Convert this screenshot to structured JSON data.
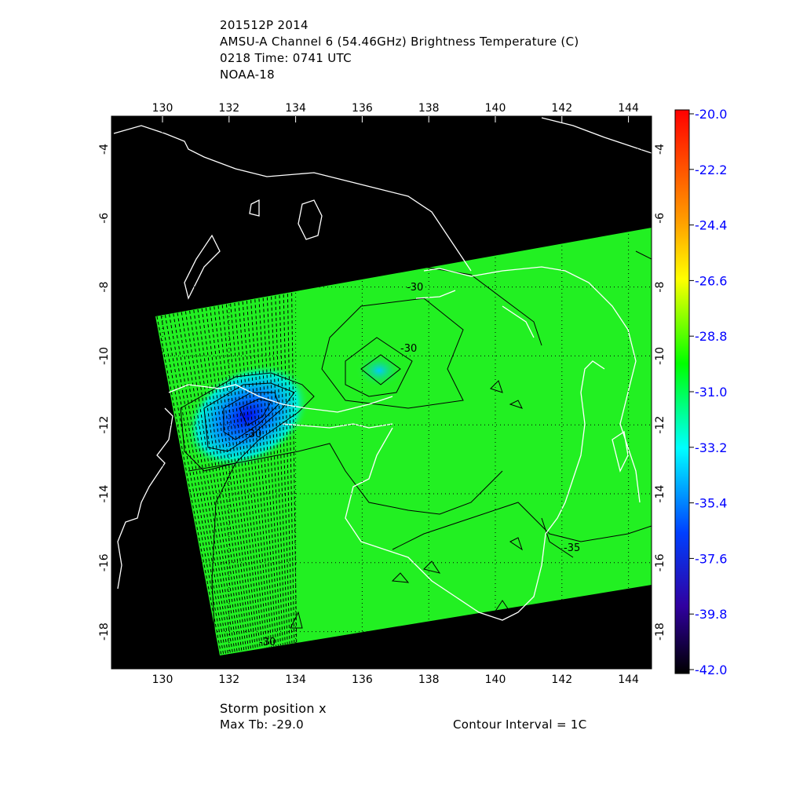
{
  "header": {
    "line1": "201512P 2014",
    "line2": "AMSU-A Channel 6 (54.46GHz) Brightness Temperature (C)",
    "line3": "0218 Time: 0741 UTC",
    "line4": "NOAA-18"
  },
  "footer": {
    "storm_position": "Storm position x",
    "max_tb": "Max Tb: -29.0",
    "contour_interval": "Contour Interval = 1C"
  },
  "map": {
    "lon_ticks": [
      "130",
      "132",
      "134",
      "136",
      "138",
      "140",
      "142",
      "144"
    ],
    "lat_ticks": [
      "-4",
      "-6",
      "-8",
      "-10",
      "-12",
      "-14",
      "-16",
      "-18"
    ],
    "contour_labels": [
      "-30",
      "-30",
      "-30",
      "-35",
      "-30"
    ]
  },
  "colorbar": {
    "labels": [
      "-20.0",
      "-22.2",
      "-24.4",
      "-26.6",
      "-28.8",
      "-31.0",
      "-33.2",
      "-35.4",
      "-37.6",
      "-39.8",
      "-42.0"
    ],
    "colors": [
      "#ff0000",
      "#ff8000",
      "#ffff00",
      "#00ff00",
      "#00ffff",
      "#0000ff",
      "#000000"
    ],
    "label_color": "#0000ff"
  },
  "colors": {
    "swath_green": "#22f022",
    "background": "#000000",
    "coast": "#ffffff"
  }
}
